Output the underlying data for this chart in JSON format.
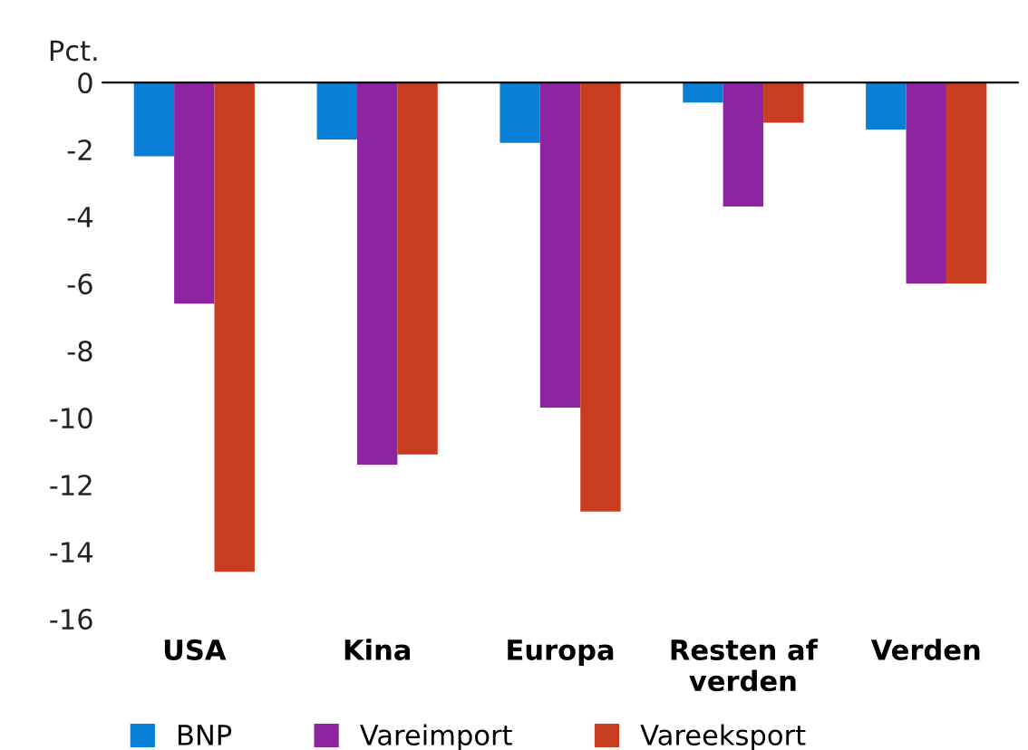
{
  "chart_data": {
    "type": "bar",
    "ylabel": "Pct.",
    "categories": [
      "USA",
      "Kina",
      "Europa",
      "Resten af\nverden",
      "Verden"
    ],
    "series": [
      {
        "name": "BNP",
        "color": "#0a7fd6",
        "values": [
          -2.2,
          -1.7,
          -1.8,
          -0.6,
          -1.4
        ]
      },
      {
        "name": "Vareimport",
        "color": "#8e24a0",
        "values": [
          -6.6,
          -11.4,
          -9.7,
          -3.7,
          -6.0
        ]
      },
      {
        "name": "Vareeksport",
        "color": "#c83c20",
        "values": [
          -14.6,
          -11.1,
          -12.8,
          -1.2,
          -6.0
        ]
      }
    ],
    "ylim": [
      -16,
      0
    ],
    "yticks": [
      -16,
      -14,
      -12,
      -10,
      -8,
      -6,
      -4,
      -2,
      0
    ],
    "grid": false,
    "legend": "bottom"
  }
}
